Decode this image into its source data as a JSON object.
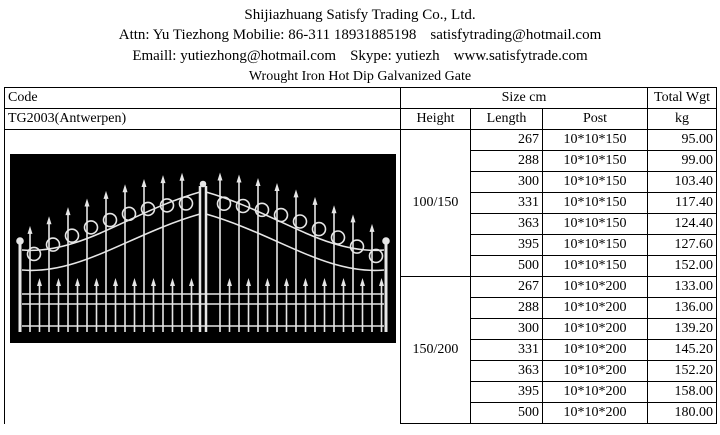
{
  "header": {
    "company": "Shijiazhuang Satisfy Trading Co., Ltd.",
    "contact_line": "Attn: Yu Tiezhong Mobilie: 86-311 18931885198",
    "contact_email": "satisfytrading@hotmail.com",
    "email_line": "Emaill: yutiezhong@hotmail.com",
    "skype": "Skype: yutiezh",
    "website": "www.satisfytrade.com",
    "product_title": "Wrought Iron Hot Dip Galvanized Gate"
  },
  "table": {
    "code_label": "Code",
    "code_value": "TG2003(Antwerpen)",
    "size_label": "Size  cm",
    "total_wgt_label": "Total Wgt",
    "height_label": "Height",
    "length_label": "Length",
    "post_label": "Post",
    "kg_label": "kg",
    "groups": [
      {
        "height": "100/150",
        "rows": [
          {
            "length": "267",
            "post": "10*10*150",
            "weight": "95.00"
          },
          {
            "length": "288",
            "post": "10*10*150",
            "weight": "99.00"
          },
          {
            "length": "300",
            "post": "10*10*150",
            "weight": "103.40"
          },
          {
            "length": "331",
            "post": "10*10*150",
            "weight": "117.40"
          },
          {
            "length": "363",
            "post": "10*10*150",
            "weight": "124.40"
          },
          {
            "length": "395",
            "post": "10*10*150",
            "weight": "127.60"
          },
          {
            "length": "500",
            "post": "10*10*150",
            "weight": "152.00"
          }
        ]
      },
      {
        "height": "150/200",
        "rows": [
          {
            "length": "267",
            "post": "10*10*200",
            "weight": "133.00"
          },
          {
            "length": "288",
            "post": "10*10*200",
            "weight": "136.00"
          },
          {
            "length": "300",
            "post": "10*10*200",
            "weight": "139.20"
          },
          {
            "length": "331",
            "post": "10*10*200",
            "weight": "145.20"
          },
          {
            "length": "363",
            "post": "10*10*200",
            "weight": "152.20"
          },
          {
            "length": "395",
            "post": "10*10*200",
            "weight": "158.00"
          },
          {
            "length": "500",
            "post": "10*10*200",
            "weight": "180.00"
          }
        ]
      }
    ]
  },
  "colors": {
    "photo_background": "#000000",
    "gate_metal": "#e6e6e6",
    "border": "#000000"
  },
  "image": {
    "subject": "gate-photo"
  }
}
